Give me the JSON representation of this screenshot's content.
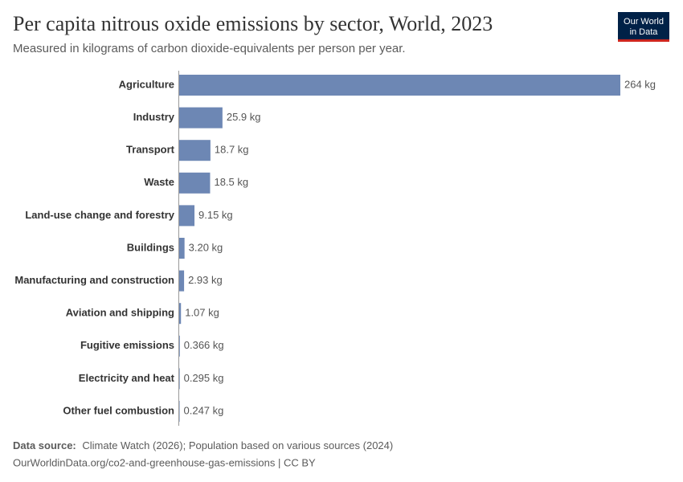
{
  "chart_data": {
    "type": "bar",
    "orientation": "horizontal",
    "title": "Per capita nitrous oxide emissions by sector, World, 2023",
    "subtitle": "Measured in kilograms of carbon dioxide-equivalents per person per year.",
    "categories": [
      "Agriculture",
      "Industry",
      "Transport",
      "Waste",
      "Land-use change and forestry",
      "Buildings",
      "Manufacturing and construction",
      "Aviation and shipping",
      "Fugitive emissions",
      "Electricity and heat",
      "Other fuel combustion"
    ],
    "values": [
      264,
      25.9,
      18.7,
      18.5,
      9.15,
      3.2,
      2.93,
      1.07,
      0.366,
      0.295,
      0.247
    ],
    "value_labels": [
      "264 kg",
      "25.9 kg",
      "18.7 kg",
      "18.5 kg",
      "9.15 kg",
      "3.20 kg",
      "2.93 kg",
      "1.07 kg",
      "0.366 kg",
      "0.295 kg",
      "0.247 kg"
    ],
    "color": "#6d87b4"
  },
  "logo": [
    "Our World",
    "in Data"
  ],
  "footer": {
    "source_label": "Data source:",
    "source": "Climate Watch (2026); Population based on various sources (2024)",
    "url": "OurWorldinData.org/co2-and-greenhouse-gas-emissions | CC BY"
  }
}
